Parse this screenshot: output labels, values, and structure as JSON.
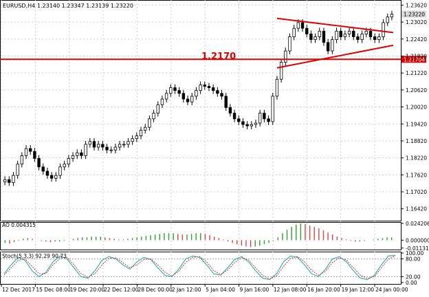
{
  "header": {
    "symbol": "EURUSD,H4",
    "ohlc": "1.23140 1.23347 1.23139 1.23220"
  },
  "annotations": {
    "level_label": "1.2170",
    "level_tag": "1.21704",
    "price_tag": "1.23220"
  },
  "colors": {
    "bull_candle": "#000000",
    "bear_candle": "#000000",
    "level_line": "#e00000",
    "triangle": "#e00000",
    "ao_up": "#2e9e2e",
    "ao_down": "#e04040",
    "stoch_main": "#20b2aa",
    "stoch_signal": "#e04040",
    "grid": "#d0d0d0"
  },
  "chart_data": [
    {
      "type": "candlestick",
      "title": "EURUSD,H4",
      "ylim": [
        1.16,
        1.238
      ],
      "y_ticks": [
        "1.23620",
        "1.23020",
        "1.22420",
        "1.21820",
        "1.21220",
        "1.20620",
        "1.20020",
        "1.19420",
        "1.18820",
        "1.18220",
        "1.17620",
        "1.17020",
        "1.16420"
      ],
      "x_ticks": [
        "12 Dec 2017",
        "15 Dec 08:00",
        "19 Dec 20:00",
        "22 Dec 12:00",
        "28 Dec 00:00",
        "2 Jan 12:00",
        "5 Jan 04:00",
        "9 Jan 16:00",
        "12 Jan 08:00",
        "16 Jan 20:00",
        "19 Jan 12:00",
        "24 Jan 00:00"
      ],
      "horizontal_line": 1.21704,
      "close": [
        1.1745,
        1.1735,
        1.176,
        1.18,
        1.183,
        1.1855,
        1.1845,
        1.182,
        1.179,
        1.1775,
        1.176,
        1.175,
        1.176,
        1.179,
        1.18,
        1.182,
        1.183,
        1.184,
        1.183,
        1.187,
        1.188,
        1.186,
        1.187,
        1.186,
        1.185,
        1.185,
        1.186,
        1.187,
        1.187,
        1.188,
        1.189,
        1.19,
        1.192,
        1.193,
        1.196,
        1.198,
        1.201,
        1.203,
        1.205,
        1.207,
        1.206,
        1.205,
        1.203,
        1.202,
        1.204,
        1.206,
        1.208,
        1.2075,
        1.207,
        1.206,
        1.205,
        1.204,
        1.2,
        1.198,
        1.196,
        1.195,
        1.194,
        1.1935,
        1.194,
        1.1945,
        1.198,
        1.196,
        1.195,
        1.204,
        1.21,
        1.216,
        1.22,
        1.225,
        1.228,
        1.23,
        1.228,
        1.226,
        1.224,
        1.225,
        1.227,
        1.223,
        1.22,
        1.224,
        1.227,
        1.225,
        1.226,
        1.227,
        1.225,
        1.224,
        1.226,
        1.227,
        1.225,
        1.224,
        1.225,
        1.23,
        1.232,
        1.233
      ],
      "triangle": {
        "upper": [
          [
            1.2315,
            1.2265
          ]
        ],
        "lower": [
          [
            1.214,
            1.222
          ]
        ]
      }
    },
    {
      "type": "bar",
      "title": "AO 0.004315",
      "y_ticks": [
        "0.024206",
        "0.000000",
        "-0.011311"
      ],
      "ylim": [
        -0.0135,
        0.026
      ],
      "values": [
        -0.004,
        -0.005,
        -0.003,
        -0.001,
        0.002,
        0.003,
        0.002,
        0.0,
        -0.001,
        -0.002,
        -0.003,
        -0.002,
        -0.002,
        -0.001,
        0.0,
        0.002,
        0.003,
        0.004,
        0.004,
        0.005,
        0.005,
        0.005,
        0.004,
        0.003,
        0.002,
        0.001,
        0.001,
        0.002,
        0.003,
        0.004,
        0.005,
        0.006,
        0.007,
        0.008,
        0.009,
        0.01,
        0.01,
        0.01,
        0.009,
        0.008,
        0.008,
        0.009,
        0.01,
        0.01,
        0.009,
        0.007,
        0.005,
        0.003,
        0.001,
        -0.002,
        -0.004,
        -0.006,
        -0.008,
        -0.009,
        -0.01,
        -0.009,
        -0.008,
        -0.006,
        -0.004,
        -0.001,
        0.004,
        0.01,
        0.015,
        0.019,
        0.022,
        0.024,
        0.023,
        0.021,
        0.019,
        0.017,
        0.014,
        0.011,
        0.008,
        0.005,
        0.003,
        0.001,
        -0.001,
        -0.002,
        -0.002,
        -0.001,
        0.0,
        0.001,
        0.002,
        0.003,
        0.004,
        0.004
      ]
    },
    {
      "type": "line",
      "title": "Stoch(5,3,3) 92.29 90.73",
      "y_ticks": [
        "100.00",
        "80.00",
        "20.00",
        "0.00"
      ],
      "ylim": [
        0,
        100
      ],
      "series": [
        {
          "values": [
            30,
            60,
            85,
            75,
            40,
            20,
            35,
            70,
            90,
            80,
            50,
            20,
            15,
            40,
            75,
            88,
            80,
            60,
            45,
            70,
            85,
            78,
            50,
            25,
            20,
            45,
            80,
            90,
            85,
            60,
            30,
            25,
            50,
            78,
            88,
            70,
            40,
            15,
            10,
            30,
            70,
            90,
            85,
            60,
            30,
            20,
            45,
            80,
            88,
            70,
            40,
            15,
            10,
            25,
            60,
            90,
            92
          ]
        },
        {
          "values": [
            25,
            50,
            75,
            80,
            55,
            30,
            30,
            60,
            82,
            85,
            60,
            30,
            18,
            30,
            60,
            82,
            84,
            68,
            50,
            60,
            78,
            80,
            60,
            35,
            22,
            38,
            68,
            85,
            88,
            70,
            40,
            28,
            42,
            68,
            84,
            76,
            50,
            25,
            12,
            22,
            55,
            82,
            88,
            70,
            42,
            25,
            38,
            68,
            84,
            76,
            50,
            25,
            14,
            20,
            50,
            80,
            90
          ]
        }
      ]
    }
  ]
}
